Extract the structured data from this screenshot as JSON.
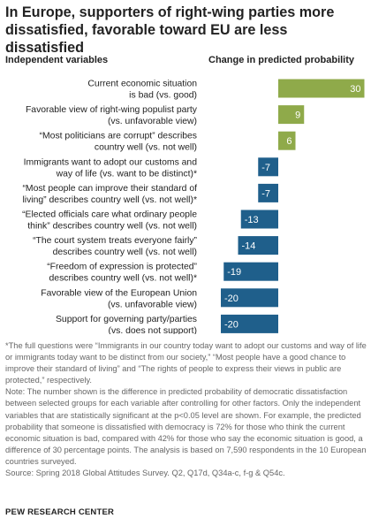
{
  "title": "In Europe, supporters of right-wing parties more dissatisfied, favorable toward EU are less dissatisfied",
  "header_left": "Independent variables",
  "header_right": "Change in predicted probability",
  "colors": {
    "positive": "#8faa4a",
    "negative": "#1f5f8b",
    "positive_label": "#ffffff",
    "negative_label": "#ffffff"
  },
  "chart_data": {
    "type": "bar",
    "orientation": "horizontal",
    "categories": [
      [
        "Current economic situation",
        "is bad (vs. good)"
      ],
      [
        "Favorable view of right-wing populist party",
        "(vs. unfavorable view)"
      ],
      [
        "“Most politicians are corrupt” describes",
        "country well (vs. not well)"
      ],
      [
        "Immigrants want to adopt our customs and",
        "way of life (vs. want to be distinct)*"
      ],
      [
        "“Most people can improve their standard of",
        "living” describes country well (vs. not well)*"
      ],
      [
        "“Elected officials care what ordinary people",
        "think” describes country well (vs. not well)"
      ],
      [
        "“The court system treats everyone fairly”",
        "describes country well (vs. not well)"
      ],
      [
        "“Freedom of expression is protected”",
        "describes country well (vs. not well)*"
      ],
      [
        "Favorable view of the European Union",
        "(vs. unfavorable view)"
      ],
      [
        "Support for governing party/parties",
        "(vs. does not support)"
      ]
    ],
    "values": [
      30,
      9,
      6,
      -7,
      -7,
      -13,
      -14,
      -19,
      -20,
      -20
    ]
  },
  "notes": [
    "*The full questions were “Immigrants in our country today want to adopt our customs and way of life or immigrants today want to be distinct from our society,” “Most people have a good chance to improve their standard of living” and “The rights of people to express their views in public are protected,” respectively.",
    "Note: The number shown is the difference in predicted probability of democratic dissatisfaction between selected groups for each variable after controlling for other factors. Only the independent variables that are statistically significant at the p<0.05 level are shown. For example, the predicted probability that someone is dissatisfied with democracy is 72% for those who think the current economic situation is bad, compared with 42% for those who say the economic situation is good, a difference of 30 percentage points. The analysis is based on 7,590 respondents in the 10 European countries surveyed.",
    "Source: Spring 2018 Global Attitudes Survey. Q2, Q17d, Q34a-c, f-g & Q54c."
  ],
  "brand": "PEW RESEARCH CENTER"
}
